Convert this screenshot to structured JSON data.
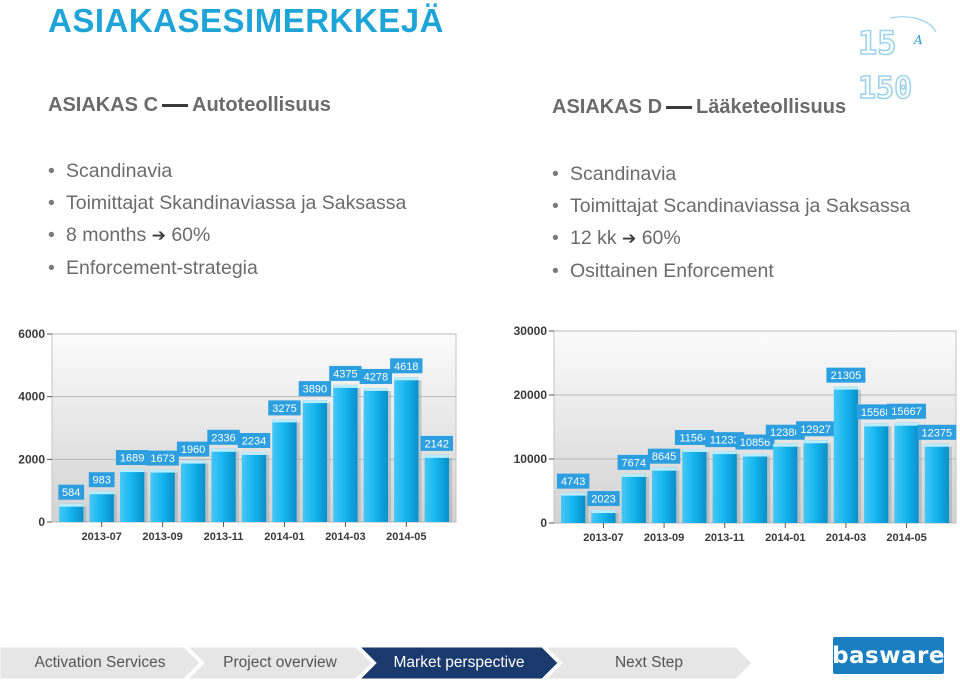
{
  "title": "ASIAKASESIMERKKEJÄ",
  "left": {
    "head_a": "ASIAKAS C",
    "head_b": "Autoteollisuus",
    "bullets": [
      "Scandinavia",
      "Toimittajat Skandinaviassa ja Saksassa"
    ],
    "b3_pre": "8 months",
    "b3_post": "60%",
    "b4": "Enforcement-strategia"
  },
  "right": {
    "head_a": "ASIAKAS D",
    "head_b": "Lääketeollisuus",
    "bullets": [
      "Scandinavia",
      "Toimittajat Scandinaviassa ja Saksassa"
    ],
    "b3_pre": "12 kk",
    "b3_post": "60%",
    "b4": "Osittainen Enforcement"
  },
  "logo": {
    "top": "15",
    "bottom": "150",
    "letter": "A"
  },
  "chart_data": [
    {
      "type": "bar",
      "ylim": [
        0,
        6000
      ],
      "yticks": [
        "0",
        "2000",
        "4000",
        "6000"
      ],
      "xticks": [
        "2013-07",
        "2013-09",
        "2013-11",
        "2014-01",
        "2014-03",
        "2014-05"
      ],
      "values": [
        584,
        983,
        1689,
        1673,
        1960,
        2336,
        2234,
        3275,
        3890,
        4375,
        4278,
        4618,
        2142
      ],
      "bar_color": "#13b4ef",
      "label_color": "#2b9fe0"
    },
    {
      "type": "bar",
      "ylim": [
        0,
        30000
      ],
      "yticks": [
        "0",
        "10000",
        "20000",
        "30000"
      ],
      "xticks": [
        "2013-07",
        "2013-09",
        "2013-11",
        "2014-01",
        "2014-03",
        "2014-05"
      ],
      "values": [
        4743,
        2023,
        7674,
        8645,
        11564,
        11232,
        10856,
        12386,
        12927,
        21305,
        15568,
        15667,
        12375
      ],
      "bar_color": "#13b4ef",
      "label_color": "#2b9fe0"
    }
  ],
  "nav": {
    "steps": [
      "Activation Services",
      "Project overview",
      "Market perspective",
      "Next Step"
    ],
    "active": 2,
    "active_color": "#1a3a6e",
    "inactive_color": "#e6e6e6"
  },
  "brand": {
    "name": "basware",
    "color": "#1a7fc1"
  }
}
